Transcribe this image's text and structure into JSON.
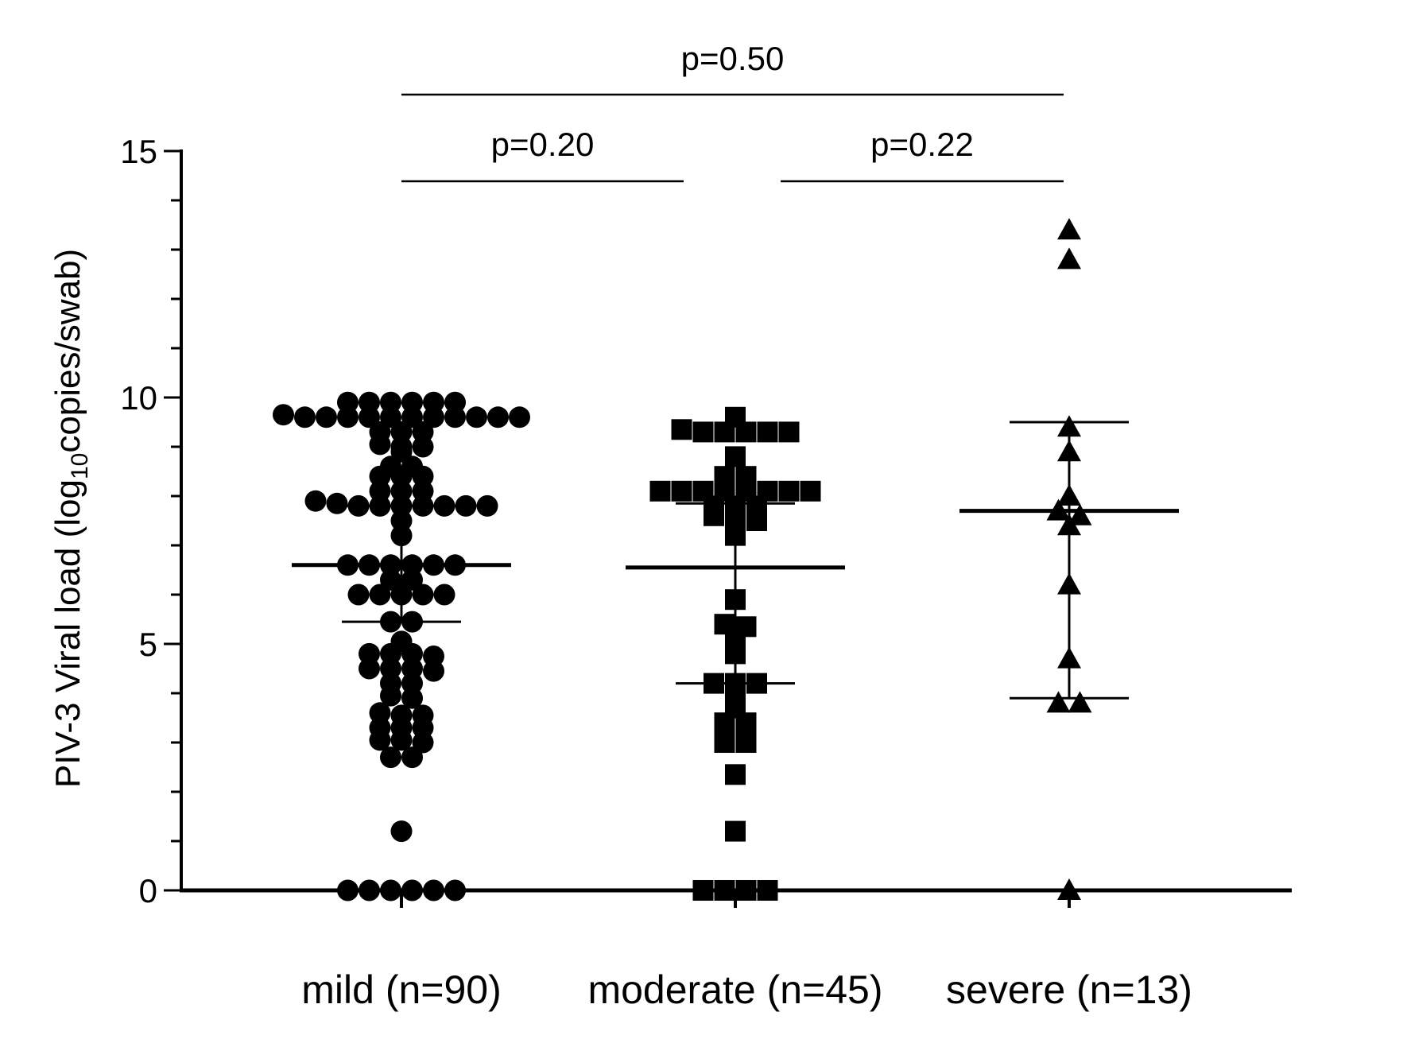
{
  "chart_data": {
    "type": "scatter",
    "subtype": "dot-plot with mean and error bars",
    "ylabel": {
      "prefix": "PIV-3 Viral load (log",
      "subscript": "10",
      "suffix": "copies/swab)"
    },
    "ylim": [
      0,
      15
    ],
    "yticks": [
      0,
      5,
      10,
      15
    ],
    "categories": [
      "mild (n=90)",
      "moderate (n=45)",
      "severe (n=13)"
    ],
    "series": [
      {
        "category": "mild (n=90)",
        "marker": "circle",
        "mean": 6.6,
        "error_low": 5.45,
        "error_high": 7.8,
        "values": [
          9.9,
          9.9,
          9.9,
          9.9,
          9.9,
          9.9,
          9.65,
          9.6,
          9.6,
          9.6,
          9.6,
          9.6,
          9.6,
          9.6,
          9.6,
          9.6,
          9.6,
          9.6,
          9.3,
          9.3,
          9.3,
          9.05,
          9.0,
          9.0,
          8.9,
          8.6,
          8.6,
          8.4,
          8.4,
          8.4,
          8.1,
          8.1,
          8.1,
          7.9,
          7.85,
          7.8,
          7.8,
          7.8,
          7.8,
          7.8,
          7.8,
          7.8,
          7.5,
          7.2,
          6.6,
          6.6,
          6.6,
          6.6,
          6.6,
          6.6,
          6.3,
          6.3,
          6.0,
          6.0,
          6.0,
          6.0,
          6.0,
          5.45,
          5.45,
          5.05,
          4.8,
          4.8,
          4.8,
          4.75,
          4.5,
          4.5,
          4.5,
          4.45,
          4.2,
          4.2,
          3.95,
          3.9,
          3.6,
          3.55,
          3.55,
          3.3,
          3.3,
          3.3,
          3.05,
          3.05,
          3.0,
          2.7,
          2.7,
          1.2,
          0,
          0,
          0,
          0,
          0,
          0
        ]
      },
      {
        "category": "moderate (n=45)",
        "marker": "square",
        "mean": 6.55,
        "error_low": 4.2,
        "error_high": 7.85,
        "values": [
          9.6,
          9.35,
          9.3,
          9.3,
          9.3,
          9.3,
          9.3,
          8.8,
          8.4,
          8.4,
          8.1,
          8.1,
          8.1,
          8.1,
          8.1,
          8.1,
          8.1,
          8.1,
          7.8,
          7.8,
          7.8,
          7.6,
          7.5,
          7.6,
          7.2,
          5.9,
          5.4,
          5.35,
          5.1,
          4.8,
          4.2,
          4.2,
          4.2,
          3.85,
          3.7,
          3.4,
          3.4,
          3.0,
          3.0,
          2.35,
          1.2,
          0,
          0,
          0,
          0
        ]
      },
      {
        "category": "severe (n=13)",
        "marker": "triangle",
        "mean": 7.7,
        "error_low": 3.9,
        "error_high": 9.5,
        "values": [
          13.4,
          12.8,
          9.4,
          8.9,
          8.0,
          7.7,
          7.6,
          7.4,
          6.2,
          4.7,
          3.8,
          3.8,
          0
        ]
      }
    ],
    "comparisons": [
      {
        "from": "mild (n=90)",
        "to": "moderate (n=45)",
        "label": "p=0.20"
      },
      {
        "from": "moderate (n=45)",
        "to": "severe (n=13)",
        "label": "p=0.22"
      },
      {
        "from": "mild (n=90)",
        "to": "severe (n=13)",
        "label": "p=0.50"
      }
    ],
    "grid": false,
    "legend": "none"
  }
}
